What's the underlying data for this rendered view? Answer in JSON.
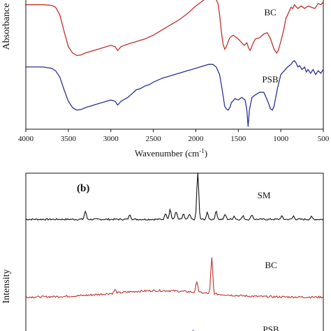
{
  "chart_data": [
    {
      "type": "line",
      "panel_label": "",
      "xlabel": "Wavenumber (cm",
      "xlabel_sup": "-1",
      "xlabel_close": ")",
      "ylabel": "Absorbance",
      "xlim": [
        4000,
        500
      ],
      "x_ticks": [
        4000,
        3500,
        3000,
        2500,
        2000,
        1500,
        1000,
        500
      ],
      "series": [
        {
          "name": "BC",
          "color": "#c0302b",
          "points": [
            [
              4000,
              0.93
            ],
            [
              3800,
              0.93
            ],
            [
              3700,
              0.925
            ],
            [
              3650,
              0.91
            ],
            [
              3600,
              0.85
            ],
            [
              3550,
              0.72
            ],
            [
              3500,
              0.6
            ],
            [
              3450,
              0.55
            ],
            [
              3400,
              0.53
            ],
            [
              3350,
              0.535
            ],
            [
              3300,
              0.55
            ],
            [
              3200,
              0.57
            ],
            [
              3100,
              0.59
            ],
            [
              3000,
              0.61
            ],
            [
              2950,
              0.6
            ],
            [
              2920,
              0.57
            ],
            [
              2880,
              0.6
            ],
            [
              2800,
              0.62
            ],
            [
              2700,
              0.64
            ],
            [
              2600,
              0.66
            ],
            [
              2500,
              0.69
            ],
            [
              2400,
              0.73
            ],
            [
              2300,
              0.77
            ],
            [
              2200,
              0.81
            ],
            [
              2100,
              0.86
            ],
            [
              2000,
              0.92
            ],
            [
              1900,
              0.97
            ],
            [
              1850,
              1.0
            ],
            [
              1820,
              1.02
            ],
            [
              1790,
              1.01
            ],
            [
              1760,
              0.97
            ],
            [
              1740,
              0.94
            ],
            [
              1720,
              0.85
            ],
            [
              1700,
              0.72
            ],
            [
              1680,
              0.62
            ],
            [
              1660,
              0.58
            ],
            [
              1640,
              0.6
            ],
            [
              1620,
              0.64
            ],
            [
              1600,
              0.67
            ],
            [
              1560,
              0.69
            ],
            [
              1500,
              0.66
            ],
            [
              1460,
              0.63
            ],
            [
              1430,
              0.61
            ],
            [
              1400,
              0.63
            ],
            [
              1380,
              0.59
            ],
            [
              1360,
              0.57
            ],
            [
              1330,
              0.62
            ],
            [
              1300,
              0.66
            ],
            [
              1250,
              0.67
            ],
            [
              1200,
              0.7
            ],
            [
              1160,
              0.71
            ],
            [
              1120,
              0.66
            ],
            [
              1080,
              0.58
            ],
            [
              1050,
              0.55
            ],
            [
              1030,
              0.57
            ],
            [
              1000,
              0.64
            ],
            [
              970,
              0.72
            ],
            [
              940,
              0.82
            ],
            [
              900,
              0.88
            ],
            [
              880,
              0.91
            ],
            [
              860,
              0.9
            ],
            [
              840,
              0.93
            ],
            [
              800,
              0.9
            ],
            [
              760,
              0.92
            ],
            [
              720,
              0.9
            ],
            [
              680,
              0.92
            ],
            [
              640,
              0.91
            ],
            [
              600,
              0.9
            ],
            [
              560,
              0.94
            ],
            [
              530,
              0.93
            ],
            [
              500,
              0.95
            ]
          ]
        },
        {
          "name": "PSB",
          "color": "#2a3296",
          "points": [
            [
              4000,
              0.44
            ],
            [
              3800,
              0.44
            ],
            [
              3700,
              0.43
            ],
            [
              3650,
              0.41
            ],
            [
              3600,
              0.36
            ],
            [
              3550,
              0.26
            ],
            [
              3500,
              0.17
            ],
            [
              3450,
              0.12
            ],
            [
              3400,
              0.1
            ],
            [
              3350,
              0.105
            ],
            [
              3300,
              0.12
            ],
            [
              3200,
              0.14
            ],
            [
              3100,
              0.16
            ],
            [
              3000,
              0.18
            ],
            [
              2950,
              0.17
            ],
            [
              2920,
              0.14
            ],
            [
              2880,
              0.17
            ],
            [
              2800,
              0.2
            ],
            [
              2750,
              0.23
            ],
            [
              2700,
              0.26
            ],
            [
              2650,
              0.27
            ],
            [
              2600,
              0.29
            ],
            [
              2550,
              0.3
            ],
            [
              2500,
              0.32
            ],
            [
              2400,
              0.35
            ],
            [
              2300,
              0.37
            ],
            [
              2200,
              0.39
            ],
            [
              2100,
              0.41
            ],
            [
              2000,
              0.43
            ],
            [
              1900,
              0.45
            ],
            [
              1850,
              0.46
            ],
            [
              1800,
              0.46
            ],
            [
              1760,
              0.44
            ],
            [
              1720,
              0.38
            ],
            [
              1690,
              0.26
            ],
            [
              1660,
              0.13
            ],
            [
              1640,
              0.11
            ],
            [
              1620,
              0.1
            ],
            [
              1600,
              0.12
            ],
            [
              1580,
              0.16
            ],
            [
              1540,
              0.19
            ],
            [
              1500,
              0.18
            ],
            [
              1460,
              0.2
            ],
            [
              1420,
              0.18
            ],
            [
              1400,
              0.1
            ],
            [
              1385,
              -0.03
            ],
            [
              1370,
              0.1
            ],
            [
              1340,
              0.2
            ],
            [
              1300,
              0.22
            ],
            [
              1250,
              0.24
            ],
            [
              1200,
              0.24
            ],
            [
              1160,
              0.18
            ],
            [
              1120,
              0.11
            ],
            [
              1100,
              0.1
            ],
            [
              1080,
              0.13
            ],
            [
              1040,
              0.27
            ],
            [
              1000,
              0.38
            ],
            [
              960,
              0.41
            ],
            [
              920,
              0.44
            ],
            [
              880,
              0.46
            ],
            [
              860,
              0.48
            ],
            [
              840,
              0.49
            ],
            [
              820,
              0.47
            ],
            [
              800,
              0.44
            ],
            [
              780,
              0.45
            ],
            [
              750,
              0.42
            ],
            [
              720,
              0.44
            ],
            [
              700,
              0.4
            ],
            [
              680,
              0.42
            ],
            [
              650,
              0.39
            ],
            [
              620,
              0.42
            ],
            [
              590,
              0.38
            ],
            [
              560,
              0.41
            ],
            [
              530,
              0.39
            ],
            [
              500,
              0.42
            ]
          ]
        }
      ],
      "ylim": [
        -0.05,
        1.0
      ]
    },
    {
      "type": "line",
      "panel_label": "(b)",
      "xlabel": "",
      "ylabel": "Intensity",
      "xlim": [
        0,
        1
      ],
      "ylim": [
        0,
        1
      ],
      "series": [
        {
          "name": "SM",
          "color": "#111111",
          "baseline": 0.715,
          "noise": 0.01,
          "peaks": [
            [
              0.2,
              0.05
            ],
            [
              0.35,
              0.03
            ],
            [
              0.47,
              0.04
            ],
            [
              0.485,
              0.06
            ],
            [
              0.505,
              0.05
            ],
            [
              0.53,
              0.03
            ],
            [
              0.55,
              0.03
            ],
            [
              0.578,
              0.29
            ],
            [
              0.61,
              0.04
            ],
            [
              0.64,
              0.05
            ],
            [
              0.67,
              0.03
            ],
            [
              0.7,
              0.02
            ],
            [
              0.73,
              0.02
            ],
            [
              0.76,
              0.03
            ],
            [
              0.86,
              0.02
            ],
            [
              0.9,
              0.02
            ],
            [
              0.96,
              0.015
            ]
          ]
        },
        {
          "name": "BC",
          "color": "#c0302b",
          "baseline": 0.235,
          "noise": 0.012,
          "hump": 0.04,
          "peaks": [
            [
              0.575,
              0.07
            ],
            [
              0.625,
              0.22
            ],
            [
              0.3,
              0.02
            ]
          ]
        },
        {
          "name": "PSB",
          "color": "#2a3296",
          "baseline": -0.05,
          "noise": 0.01,
          "peaks": [
            [
              0.562,
              0.08
            ],
            [
              0.58,
              0.06
            ]
          ]
        }
      ]
    }
  ]
}
